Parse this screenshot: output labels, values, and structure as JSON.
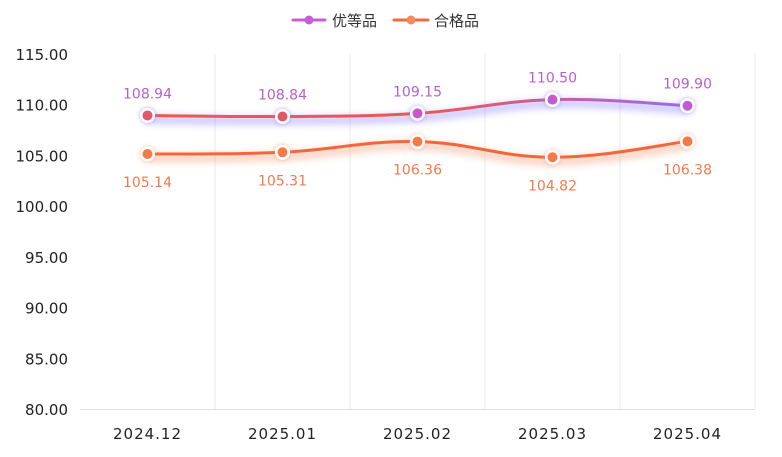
{
  "chart_data": {
    "type": "line",
    "categories": [
      "2024.12",
      "2025.01",
      "2025.02",
      "2025.03",
      "2025.04"
    ],
    "series": [
      {
        "name": "优等品",
        "values": [
          108.94,
          108.84,
          109.15,
          110.5,
          109.9
        ],
        "color": "#b35ad6",
        "line_color_start": "#f05a4c",
        "line_color_end": "#9b6bf0"
      },
      {
        "name": "合格品",
        "values": [
          105.14,
          105.31,
          106.36,
          104.82,
          106.38
        ],
        "color": "#f26a3d",
        "label_color": "#f47b4e"
      }
    ],
    "y_ticks": [
      "115.00",
      "110.00",
      "105.00",
      "100.00",
      "95.00",
      "90.00",
      "85.00",
      "80.00"
    ],
    "ylim": [
      80,
      115
    ],
    "legend_position": "top-center",
    "grid": "vertical",
    "title": "",
    "xlabel": "",
    "ylabel": ""
  }
}
